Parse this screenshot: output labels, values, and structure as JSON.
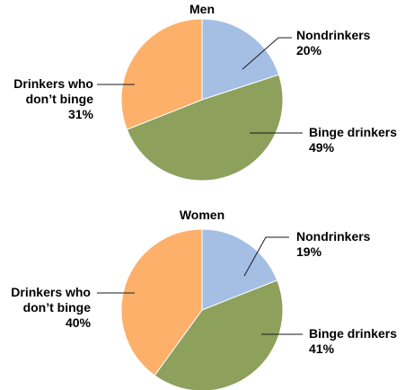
{
  "chart_data": [
    {
      "type": "pie",
      "title": "Men",
      "slices": [
        {
          "label_lines": [
            "Nondrinkers"
          ],
          "value_label": "20%",
          "value": 20,
          "color": "#a5bfe4"
        },
        {
          "label_lines": [
            "Binge drinkers"
          ],
          "value_label": "49%",
          "value": 49,
          "color": "#8da05c"
        },
        {
          "label_lines": [
            "Drinkers who",
            "don’t binge"
          ],
          "value_label": "31%",
          "value": 31,
          "color": "#fdb06a"
        }
      ]
    },
    {
      "type": "pie",
      "title": "Women",
      "slices": [
        {
          "label_lines": [
            "Nondrinkers"
          ],
          "value_label": "19%",
          "value": 19,
          "color": "#a5bfe4"
        },
        {
          "label_lines": [
            "Binge drinkers"
          ],
          "value_label": "41%",
          "value": 41,
          "color": "#8da05c"
        },
        {
          "label_lines": [
            "Drinkers who",
            "don’t binge"
          ],
          "value_label": "40%",
          "value": 40,
          "color": "#fdb06a"
        }
      ]
    }
  ]
}
